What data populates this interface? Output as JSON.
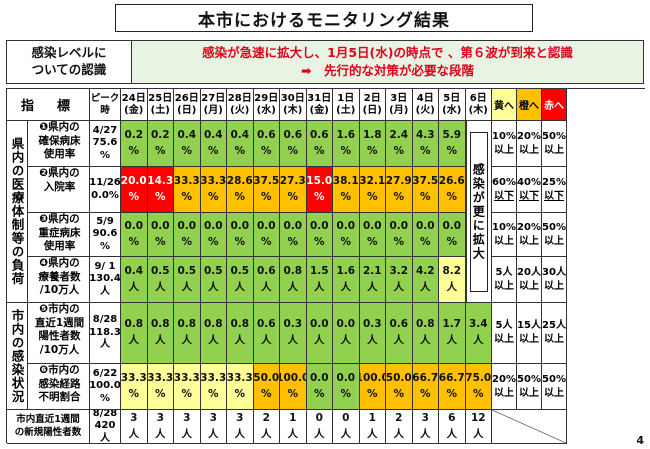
{
  "title": "本市におけるモニタリング結果",
  "assessment": {
    "label_line1": "感染レベルに",
    "label_line2": "ついての認識",
    "line1": "感染が急速に拡大し、1月5日(水)の時点で 、第６波が到来と認識",
    "line2": "➡　先行的な対策が必要な段階"
  },
  "header": {
    "indicator": "指　標",
    "peak_line1": "ピーク",
    "peak_line2": "時",
    "thresholds": [
      "黄へ",
      "橙へ",
      "赤へ"
    ]
  },
  "dates": [
    [
      "24日",
      "(金)"
    ],
    [
      "25日",
      "(土)"
    ],
    [
      "26日",
      "(日)"
    ],
    [
      "27日",
      "(月)"
    ],
    [
      "28日",
      "(火)"
    ],
    [
      "29日",
      "(水)"
    ],
    [
      "30日",
      "(木)"
    ],
    [
      "31日",
      "(金)"
    ],
    [
      "1日",
      "(土)"
    ],
    [
      "2日",
      "(日)"
    ],
    [
      "3日",
      "(月)"
    ],
    [
      "4日",
      "(火)"
    ],
    [
      "5日",
      "(水)"
    ],
    [
      "6日",
      "(木)"
    ]
  ],
  "groups": {
    "medical": "県内の医療体制等の負荷",
    "infection": "市内の感染状況"
  },
  "merged_note": "感染が更に拡大",
  "rows": [
    {
      "name": [
        "❶県内の",
        "確保病床",
        "使用率"
      ],
      "peak": [
        "4/27",
        "75.6",
        "%"
      ],
      "values": [
        "0.2\n%",
        "0.2\n%",
        "0.4\n%",
        "0.4\n%",
        "0.4\n%",
        "0.6\n%",
        "0.6\n%",
        "0.6\n%",
        "1.6\n%",
        "1.8\n%",
        "2.4\n%",
        "4.3\n%",
        "5.9\n%"
      ],
      "colors": [
        "g",
        "g",
        "g",
        "g",
        "g",
        "g",
        "g",
        "g",
        "g",
        "g",
        "g",
        "g",
        "g"
      ],
      "thresholds": [
        [
          "10%",
          "以上"
        ],
        [
          "20%",
          "以上"
        ],
        [
          "50%",
          "以上"
        ]
      ]
    },
    {
      "name": [
        "❷県内の",
        "入院率"
      ],
      "peak": [
        "11/26",
        "0.0%"
      ],
      "values": [
        "20.0\n%",
        "14.3\n%",
        "33.3\n%",
        "33.3\n%",
        "28.6\n%",
        "37.5\n%",
        "27.3\n%",
        "15.0\n%",
        "38.1\n%",
        "32.1\n%",
        "27.9\n%",
        "37.5\n%",
        "26.6\n%"
      ],
      "colors": [
        "r",
        "r",
        "o",
        "o",
        "o",
        "o",
        "o",
        "r",
        "o",
        "o",
        "o",
        "o",
        "o"
      ],
      "thresholds": [
        [
          "60%",
          "以下"
        ],
        [
          "40%",
          "以下"
        ],
        [
          "25%",
          "以下"
        ]
      ],
      "underline": true
    },
    {
      "name": [
        "❸県内の",
        "重症病床",
        "使用率"
      ],
      "peak": [
        "5/9",
        "90.6",
        "%"
      ],
      "values": [
        "0.0\n%",
        "0.0\n%",
        "0.0\n%",
        "0.0\n%",
        "0.0\n%",
        "0.0\n%",
        "0.0\n%",
        "0.0\n%",
        "0.0\n%",
        "0.0\n%",
        "0.0\n%",
        "0.0\n%",
        "0.0\n%"
      ],
      "colors": [
        "g",
        "g",
        "g",
        "g",
        "g",
        "g",
        "g",
        "g",
        "g",
        "g",
        "g",
        "g",
        "g"
      ],
      "thresholds": [
        [
          "10%",
          "以上"
        ],
        [
          "20%",
          "以上"
        ],
        [
          "50%",
          "以上"
        ]
      ]
    },
    {
      "name": [
        "❹県内の",
        "療養者数",
        "/10万人"
      ],
      "peak": [
        "9/ 1",
        "130.4",
        "人"
      ],
      "values": [
        "0.4\n人",
        "0.5\n人",
        "0.5\n人",
        "0.5\n人",
        "0.5\n人",
        "0.6\n人",
        "0.8\n人",
        "1.5\n人",
        "1.6\n人",
        "2.1\n人",
        "3.2\n人",
        "4.2\n人",
        "8.2\n人"
      ],
      "colors": [
        "g",
        "g",
        "g",
        "g",
        "g",
        "g",
        "g",
        "g",
        "g",
        "g",
        "g",
        "g",
        "y"
      ],
      "thresholds": [
        [
          "5人",
          "以上"
        ],
        [
          "20人",
          "以上"
        ],
        [
          "30人",
          "以上"
        ]
      ]
    },
    {
      "name": [
        "❺市内の",
        "直近1週間",
        "陽性者数",
        "/10万人"
      ],
      "peak": [
        "8/28",
        "118.3",
        "人"
      ],
      "values": [
        "0.8\n人",
        "0.8\n人",
        "0.8\n人",
        "0.8\n人",
        "0.8\n人",
        "0.6\n人",
        "0.3\n人",
        "0.0\n人",
        "0.0\n人",
        "0.3\n人",
        "0.6\n人",
        "0.8\n人",
        "1.7\n人",
        "3.4\n人"
      ],
      "colors": [
        "g",
        "g",
        "g",
        "g",
        "g",
        "g",
        "g",
        "g",
        "g",
        "g",
        "g",
        "g",
        "g",
        "g"
      ],
      "thresholds": [
        [
          "5人",
          "以上"
        ],
        [
          "15人",
          "以上"
        ],
        [
          "25人",
          "以上"
        ]
      ]
    },
    {
      "name": [
        "❻市内の",
        "感染経路",
        "不明割合"
      ],
      "peak": [
        "6/22",
        "100.0",
        "%"
      ],
      "values": [
        "33.3\n%",
        "33.3\n%",
        "33.3\n%",
        "33.3\n%",
        "33.3\n%",
        "50.0\n%",
        "100.0\n%",
        "0.0\n%",
        "0.0\n%",
        "100.0\n%",
        "50.0\n%",
        "66.7\n%",
        "66.7\n%",
        "75.0\n%"
      ],
      "colors": [
        "y",
        "y",
        "y",
        "y",
        "y",
        "o",
        "o",
        "g",
        "g",
        "o",
        "o",
        "o",
        "o",
        "o"
      ],
      "thresholds": [
        [
          "20%",
          "以上"
        ],
        [
          "50%",
          "以上"
        ],
        [
          "50%",
          "以上"
        ]
      ]
    }
  ],
  "new_cases": {
    "label": [
      "市内直近1週間",
      "の新規陽性者数"
    ],
    "peak": [
      "8/28",
      "420人"
    ],
    "values": [
      "3\n人",
      "3\n人",
      "3\n人",
      "3\n人",
      "3\n人",
      "2\n人",
      "1\n人",
      "0\n人",
      "0\n人",
      "1\n人",
      "2\n人",
      "3\n人",
      "6\n人",
      "12\n人"
    ]
  },
  "page_number": "4",
  "colors": {
    "green": "#92d050",
    "yellow": "#ffff99",
    "orange": "#ffc000",
    "red": "#ff0000",
    "assessment_bg": "#e7f4e4",
    "assessment_text": "#e0001b"
  }
}
